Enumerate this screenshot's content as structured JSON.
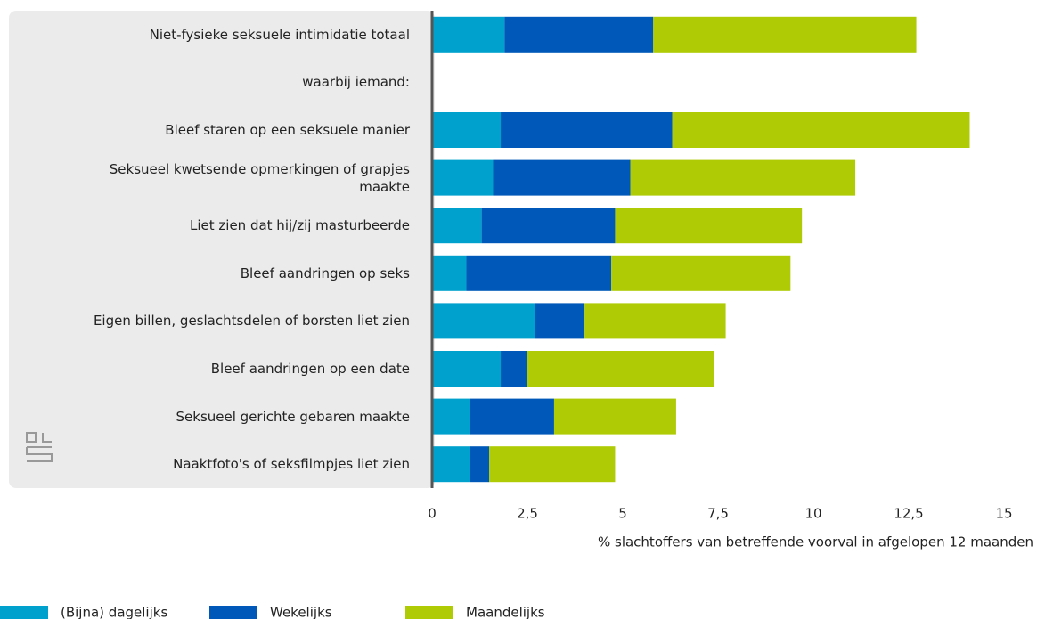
{
  "chart_data": {
    "type": "stacked-barh",
    "categories": [
      "Niet-fysieke seksuele intimidatie totaal",
      "waarbij iemand:",
      "Bleef staren op een seksuele manier",
      "Seksueel kwetsende opmerkingen of grapjes maakte",
      "Liet zien dat hij/zij masturbeerde",
      "Bleef aandringen op seks",
      "Eigen billen, geslachtsdelen of borsten liet zien",
      "Bleef aandringen op een date",
      "Seksueel gerichte gebaren maakte",
      "Naaktfoto's of seksfilmpjes liet zien"
    ],
    "series": [
      {
        "name": "(Bijna) dagelijks",
        "color": "#00a1cd",
        "values": [
          1.9,
          null,
          1.8,
          1.6,
          1.3,
          0.9,
          2.7,
          1.8,
          1.0,
          1.0
        ]
      },
      {
        "name": "Wekelijks",
        "color": "#0058b8",
        "values": [
          3.9,
          null,
          4.5,
          3.6,
          3.5,
          3.8,
          1.3,
          0.7,
          2.2,
          0.5
        ]
      },
      {
        "name": "Maandelijks",
        "color": "#afcb05",
        "values": [
          6.9,
          null,
          7.8,
          5.9,
          4.9,
          4.7,
          3.7,
          4.9,
          3.2,
          3.3
        ]
      }
    ],
    "xlabel": "% slachtoffers van betreffende voorval in afgelopen 12 maanden",
    "xlim": [
      0,
      15
    ],
    "xticks": [
      0,
      {
        "value": 2.5,
        "label": "2,5"
      },
      5,
      {
        "value": 7.5,
        "label": "7,5"
      },
      10,
      {
        "value": 12.5,
        "label": "12,5"
      },
      15
    ]
  }
}
